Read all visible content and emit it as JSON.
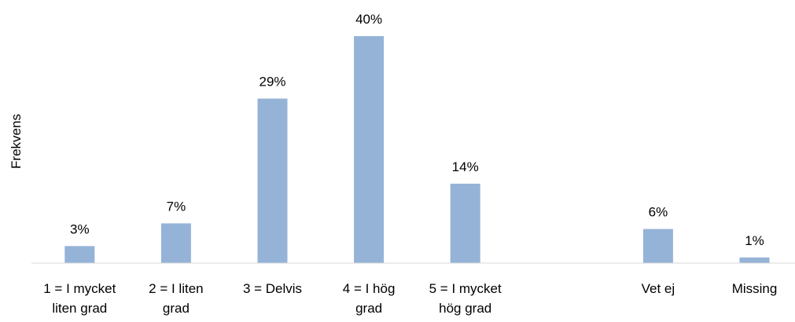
{
  "chart_data": {
    "type": "bar",
    "title": "",
    "xlabel": "",
    "ylabel": "Frekvens",
    "ylim": [
      0,
      40
    ],
    "grid": false,
    "legend": "none",
    "bar_color": "#95b3d7",
    "categories": [
      [
        "1 = I mycket",
        "liten grad"
      ],
      [
        "2 = I liten",
        "grad"
      ],
      [
        "3 = Delvis"
      ],
      [
        "4 = I hög",
        "grad"
      ],
      [
        "5 = I mycket",
        "hög grad"
      ],
      [],
      [
        "Vet ej"
      ],
      [
        "Missing"
      ]
    ],
    "values": [
      3,
      7,
      29,
      40,
      14,
      null,
      6,
      1
    ],
    "data_labels": [
      "3%",
      "7%",
      "29%",
      "40%",
      "14%",
      "",
      "6%",
      "1%"
    ]
  }
}
